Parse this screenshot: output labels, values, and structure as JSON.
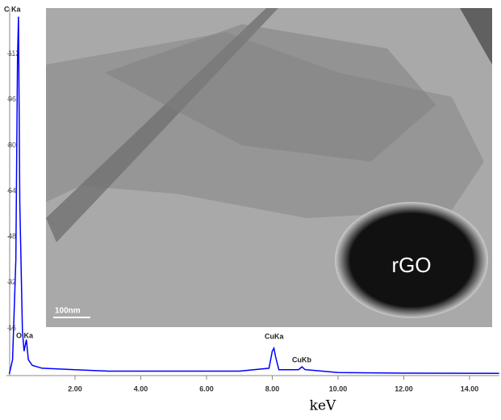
{
  "chart_data": {
    "type": "line",
    "x_label": "keV",
    "color": "#0000ff",
    "x": [
      0,
      0.1,
      0.2,
      0.25,
      0.28,
      0.32,
      0.4,
      0.45,
      0.52,
      0.58,
      0.7,
      1.0,
      2.0,
      3.0,
      4.0,
      5.0,
      6.0,
      7.0,
      7.9,
      8.0,
      8.05,
      8.1,
      8.2,
      8.8,
      8.9,
      9.0,
      10.0,
      12.0,
      14.9
    ],
    "values": [
      0,
      5,
      40,
      110,
      125,
      60,
      15,
      8,
      12,
      5,
      3,
      2,
      1.5,
      1,
      1,
      1,
      1,
      1,
      2,
      8,
      9,
      6,
      1.5,
      1.5,
      2.5,
      1.5,
      0.5,
      0.3,
      0.2
    ],
    "xlim": [
      0,
      14.9
    ],
    "ylim": [
      0,
      128
    ],
    "xticks": [
      {
        "value": 2,
        "label": "2.00"
      },
      {
        "value": 4,
        "label": "4.00"
      },
      {
        "value": 6,
        "label": "6.00"
      },
      {
        "value": 8,
        "label": "8.00"
      },
      {
        "value": 10,
        "label": "10.00"
      },
      {
        "value": 12,
        "label": "12.00"
      },
      {
        "value": 14,
        "label": "14.00"
      }
    ],
    "yticks": [
      16,
      32,
      48,
      64,
      80,
      96,
      112
    ],
    "annotations": [
      "C Ka",
      "O Ka",
      "CuKa",
      "CuKb"
    ]
  },
  "image": {
    "scale_bar": "100nm",
    "inset_label": "rGO"
  }
}
